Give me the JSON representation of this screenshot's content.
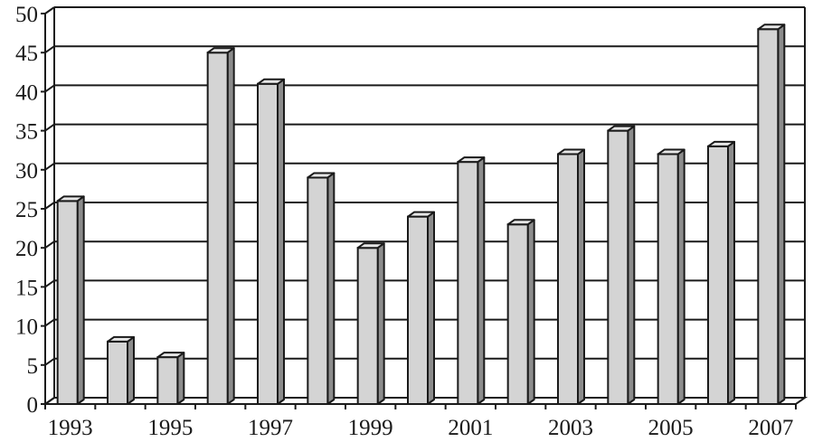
{
  "chart_data": {
    "type": "bar",
    "categories": [
      "1993",
      "1994",
      "1995",
      "1996",
      "1997",
      "1998",
      "1999",
      "2000",
      "2001",
      "2002",
      "2003",
      "2004",
      "2005",
      "2006",
      "2007"
    ],
    "values": [
      26,
      8,
      6,
      45,
      41,
      29,
      20,
      24,
      31,
      23,
      32,
      35,
      32,
      33,
      48
    ],
    "x_tick_labels": [
      "1993",
      "1995",
      "1997",
      "1999",
      "2001",
      "2003",
      "2005",
      "2007"
    ],
    "y_tick_labels": [
      "0",
      "5",
      "10",
      "15",
      "20",
      "25",
      "30",
      "35",
      "40",
      "45",
      "50"
    ],
    "ylim": [
      0,
      50
    ],
    "title": "",
    "xlabel": "",
    "ylabel": "",
    "grid": true,
    "legend": "none",
    "style": "3d-bar",
    "colors": {
      "bar": "#d4d4d4",
      "bar_top": "#e6e6e6",
      "bar_side": "#8c8c8c",
      "line": "#1a1a1a"
    }
  }
}
